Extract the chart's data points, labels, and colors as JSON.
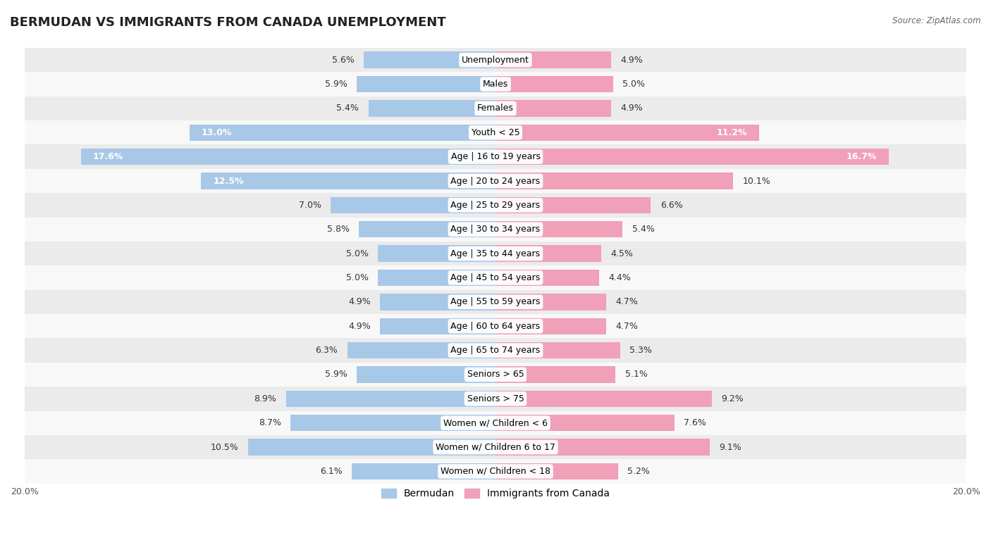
{
  "title": "BERMUDAN VS IMMIGRANTS FROM CANADA UNEMPLOYMENT",
  "source": "Source: ZipAtlas.com",
  "categories": [
    "Unemployment",
    "Males",
    "Females",
    "Youth < 25",
    "Age | 16 to 19 years",
    "Age | 20 to 24 years",
    "Age | 25 to 29 years",
    "Age | 30 to 34 years",
    "Age | 35 to 44 years",
    "Age | 45 to 54 years",
    "Age | 55 to 59 years",
    "Age | 60 to 64 years",
    "Age | 65 to 74 years",
    "Seniors > 65",
    "Seniors > 75",
    "Women w/ Children < 6",
    "Women w/ Children 6 to 17",
    "Women w/ Children < 18"
  ],
  "bermudan": [
    5.6,
    5.9,
    5.4,
    13.0,
    17.6,
    12.5,
    7.0,
    5.8,
    5.0,
    5.0,
    4.9,
    4.9,
    6.3,
    5.9,
    8.9,
    8.7,
    10.5,
    6.1
  ],
  "immigrants": [
    4.9,
    5.0,
    4.9,
    11.2,
    16.7,
    10.1,
    6.6,
    5.4,
    4.5,
    4.4,
    4.7,
    4.7,
    5.3,
    5.1,
    9.2,
    7.6,
    9.1,
    5.2
  ],
  "bermudan_color": "#a8c8e8",
  "immigrants_color": "#f0a0b8",
  "bar_height": 0.68,
  "xlim": 20.0,
  "bg_row_light": "#ebebeb",
  "bg_row_white": "#f8f8f8",
  "label_fontsize": 9.0,
  "value_fontsize": 9.0,
  "title_fontsize": 13,
  "legend_fontsize": 10,
  "axis_label_fontsize": 9,
  "inside_label_threshold": 11.0
}
